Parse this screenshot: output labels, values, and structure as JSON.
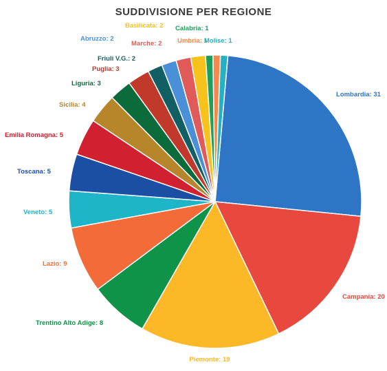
{
  "chart_data": {
    "type": "pie",
    "title": "SUDDIVISIONE  PER REGIONE",
    "slices": [
      {
        "label": "Lombardia: 31",
        "value": 31,
        "color": "#2e75c6"
      },
      {
        "label": "Campania: 20",
        "value": 20,
        "color": "#e8483d"
      },
      {
        "label": "Piemonte: 19",
        "value": 19,
        "color": "#fdb827"
      },
      {
        "label": "Trentino Alto Adige: 8",
        "value": 8,
        "color": "#0e9349"
      },
      {
        "label": "Lazio: 9",
        "value": 9,
        "color": "#f26b38"
      },
      {
        "label": "Veneto: 5",
        "value": 5,
        "color": "#1fb5c9"
      },
      {
        "label": "Toscana: 5",
        "value": 5,
        "color": "#1a4fa3"
      },
      {
        "label": "Emilia Romagna: 5",
        "value": 5,
        "color": "#d1202f"
      },
      {
        "label": "Sicilia: 4",
        "value": 4,
        "color": "#b8862a"
      },
      {
        "label": "Liguria: 3",
        "value": 3,
        "color": "#0b6b3a"
      },
      {
        "label": "Puglia: 3",
        "value": 3,
        "color": "#c0392b"
      },
      {
        "label": "Friuli V.G.: 2",
        "value": 2,
        "color": "#115e63"
      },
      {
        "label": "Abruzzo: 2",
        "value": 2,
        "color": "#4a90d9"
      },
      {
        "label": "Marche: 2",
        "value": 2,
        "color": "#e15a5a"
      },
      {
        "label": "Basilicata: 2",
        "value": 2,
        "color": "#f8c21c"
      },
      {
        "label": "Calabria: 1",
        "value": 1,
        "color": "#1f9e5c"
      },
      {
        "label": "Umbria: 1",
        "value": 1,
        "color": "#f5884a"
      },
      {
        "label": "Molise: 1",
        "value": 1,
        "color": "#26b0c4"
      }
    ],
    "label_colors": {
      "Lombardia: 31": "#2e75c6",
      "Campania: 20": "#e8483d",
      "Piemonte: 19": "#fdb827",
      "Trentino Alto Adige: 8": "#0e9349",
      "Lazio: 9": "#f26b38",
      "Veneto: 5": "#1fb5c9",
      "Toscana: 5": "#1a4fa3",
      "Emilia Romagna: 5": "#d1202f",
      "Sicilia: 4": "#b8862a",
      "Liguria: 3": "#0b6b3a",
      "Puglia: 3": "#c0392b",
      "Friuli V.G.: 2": "#115e63",
      "Abruzzo: 2": "#4a90d9",
      "Marche: 2": "#e15a5a",
      "Basilicata: 2": "#f8c21c",
      "Calabria: 1": "#1f9e5c",
      "Umbria: 1": "#f5884a",
      "Molise: 1": "#26b0c4"
    }
  }
}
